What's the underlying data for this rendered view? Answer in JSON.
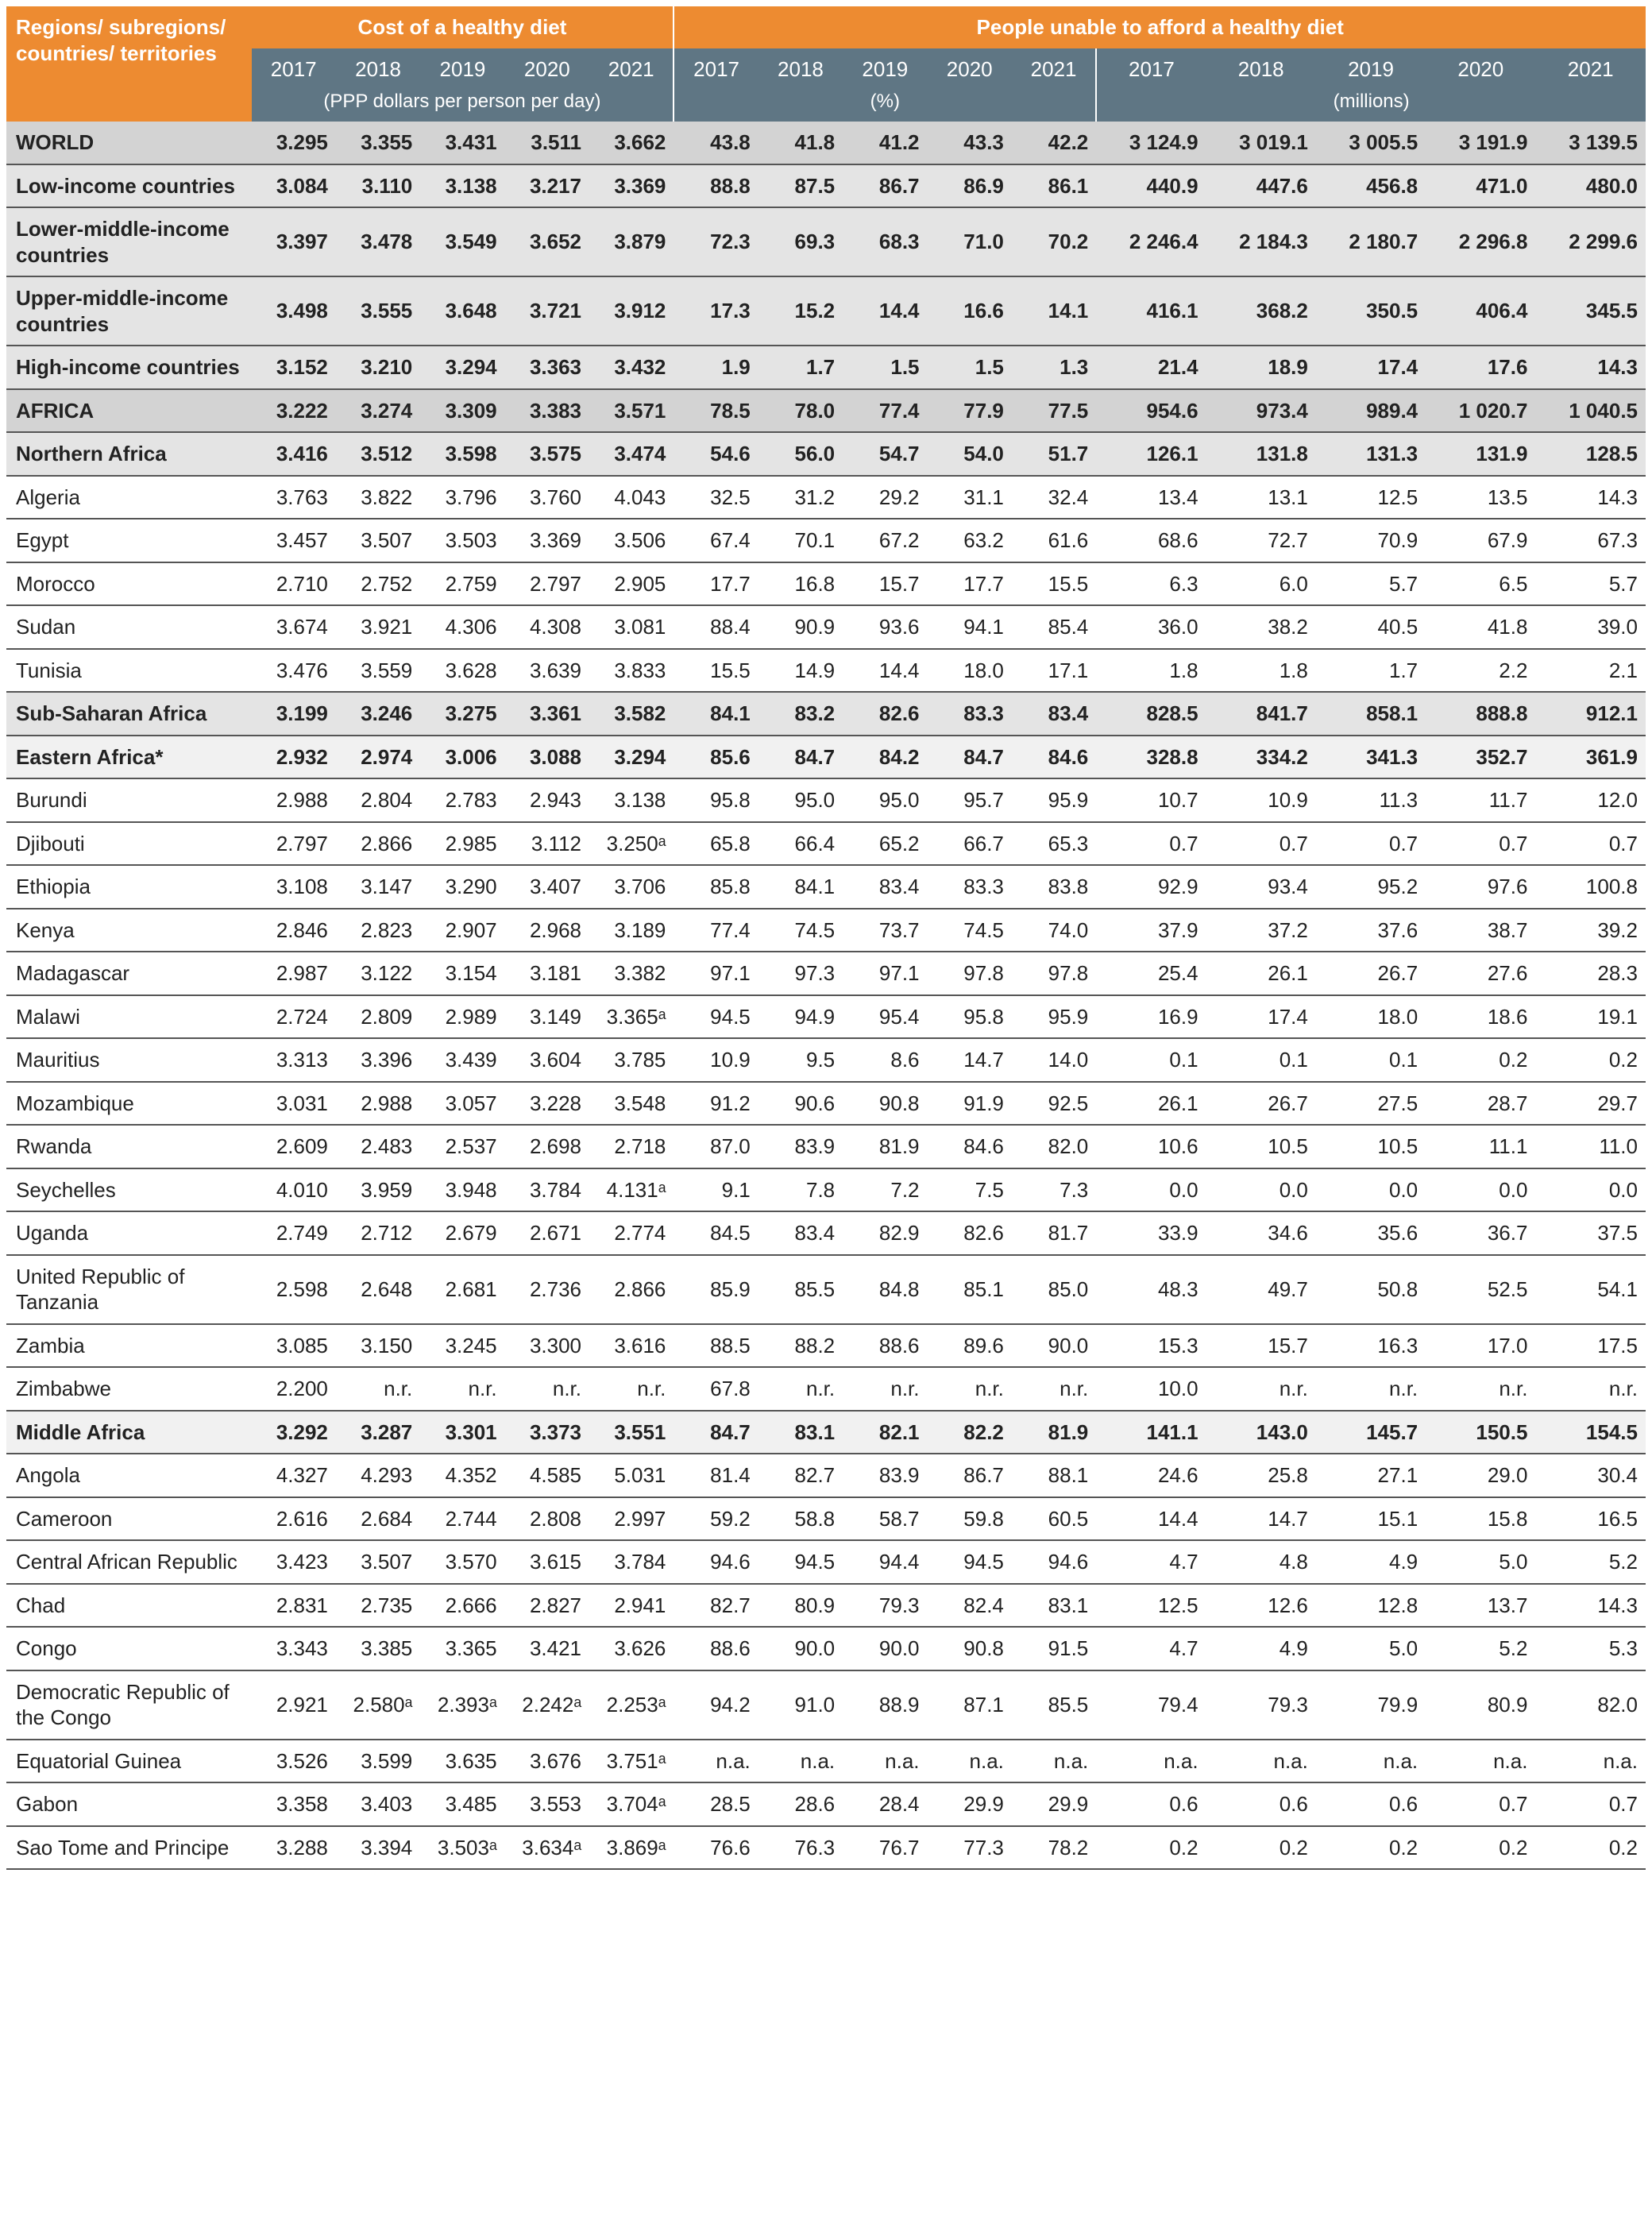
{
  "type": "table",
  "background_color": "#ffffff",
  "colors": {
    "header_orange": "#ed8b31",
    "header_slate": "#5f7684",
    "header_text": "#ffffff",
    "row_lvl0_bg": "#d3d3d3",
    "row_lvl1_bg": "#e4e4e4",
    "row_lvl2_bg": "#f1f1f1",
    "row_lvl3_bg": "#ffffff",
    "border": "#555555",
    "text": "#222222"
  },
  "typography": {
    "font_family": "Arial, Helvetica, sans-serif",
    "body_fontsize_pt": 20,
    "header_fontsize_pt": 20
  },
  "header": {
    "region_label": "Regions/ subregions/ countries/ territories",
    "group_cost": "Cost of a healthy diet",
    "group_people": "People unable to afford a healthy diet",
    "years": [
      "2017",
      "2018",
      "2019",
      "2020",
      "2021"
    ],
    "unit_cost": "(PPP dollars per person per day)",
    "unit_pct": "(%)",
    "unit_mil": "(millions)"
  },
  "rows": [
    {
      "level": 0,
      "label": "WORLD",
      "cost": [
        "3.295",
        "3.355",
        "3.431",
        "3.511",
        "3.662"
      ],
      "pct": [
        "43.8",
        "41.8",
        "41.2",
        "43.3",
        "42.2"
      ],
      "mil": [
        "3 124.9",
        "3 019.1",
        "3 005.5",
        "3 191.9",
        "3 139.5"
      ]
    },
    {
      "level": 1,
      "label": "Low-income countries",
      "cost": [
        "3.084",
        "3.110",
        "3.138",
        "3.217",
        "3.369"
      ],
      "pct": [
        "88.8",
        "87.5",
        "86.7",
        "86.9",
        "86.1"
      ],
      "mil": [
        "440.9",
        "447.6",
        "456.8",
        "471.0",
        "480.0"
      ]
    },
    {
      "level": 1,
      "label": "Lower-middle-income countries",
      "cost": [
        "3.397",
        "3.478",
        "3.549",
        "3.652",
        "3.879"
      ],
      "pct": [
        "72.3",
        "69.3",
        "68.3",
        "71.0",
        "70.2"
      ],
      "mil": [
        "2 246.4",
        "2 184.3",
        "2 180.7",
        "2 296.8",
        "2 299.6"
      ]
    },
    {
      "level": 1,
      "label": "Upper-middle-income countries",
      "cost": [
        "3.498",
        "3.555",
        "3.648",
        "3.721",
        "3.912"
      ],
      "pct": [
        "17.3",
        "15.2",
        "14.4",
        "16.6",
        "14.1"
      ],
      "mil": [
        "416.1",
        "368.2",
        "350.5",
        "406.4",
        "345.5"
      ]
    },
    {
      "level": 1,
      "label": "High-income countries",
      "cost": [
        "3.152",
        "3.210",
        "3.294",
        "3.363",
        "3.432"
      ],
      "pct": [
        "1.9",
        "1.7",
        "1.5",
        "1.5",
        "1.3"
      ],
      "mil": [
        "21.4",
        "18.9",
        "17.4",
        "17.6",
        "14.3"
      ]
    },
    {
      "level": 0,
      "label": "AFRICA",
      "cost": [
        "3.222",
        "3.274",
        "3.309",
        "3.383",
        "3.571"
      ],
      "pct": [
        "78.5",
        "78.0",
        "77.4",
        "77.9",
        "77.5"
      ],
      "mil": [
        "954.6",
        "973.4",
        "989.4",
        "1 020.7",
        "1 040.5"
      ]
    },
    {
      "level": 1,
      "label": "Northern Africa",
      "cost": [
        "3.416",
        "3.512",
        "3.598",
        "3.575",
        "3.474"
      ],
      "pct": [
        "54.6",
        "56.0",
        "54.7",
        "54.0",
        "51.7"
      ],
      "mil": [
        "126.1",
        "131.8",
        "131.3",
        "131.9",
        "128.5"
      ]
    },
    {
      "level": 3,
      "label": "Algeria",
      "cost": [
        "3.763",
        "3.822",
        "3.796",
        "3.760",
        "4.043"
      ],
      "pct": [
        "32.5",
        "31.2",
        "29.2",
        "31.1",
        "32.4"
      ],
      "mil": [
        "13.4",
        "13.1",
        "12.5",
        "13.5",
        "14.3"
      ]
    },
    {
      "level": 3,
      "label": "Egypt",
      "cost": [
        "3.457",
        "3.507",
        "3.503",
        "3.369",
        "3.506"
      ],
      "pct": [
        "67.4",
        "70.1",
        "67.2",
        "63.2",
        "61.6"
      ],
      "mil": [
        "68.6",
        "72.7",
        "70.9",
        "67.9",
        "67.3"
      ]
    },
    {
      "level": 3,
      "label": "Morocco",
      "cost": [
        "2.710",
        "2.752",
        "2.759",
        "2.797",
        "2.905"
      ],
      "pct": [
        "17.7",
        "16.8",
        "15.7",
        "17.7",
        "15.5"
      ],
      "mil": [
        "6.3",
        "6.0",
        "5.7",
        "6.5",
        "5.7"
      ]
    },
    {
      "level": 3,
      "label": "Sudan",
      "cost": [
        "3.674",
        "3.921",
        "4.306",
        "4.308",
        "3.081"
      ],
      "pct": [
        "88.4",
        "90.9",
        "93.6",
        "94.1",
        "85.4"
      ],
      "mil": [
        "36.0",
        "38.2",
        "40.5",
        "41.8",
        "39.0"
      ]
    },
    {
      "level": 3,
      "label": "Tunisia",
      "cost": [
        "3.476",
        "3.559",
        "3.628",
        "3.639",
        "3.833"
      ],
      "pct": [
        "15.5",
        "14.9",
        "14.4",
        "18.0",
        "17.1"
      ],
      "mil": [
        "1.8",
        "1.8",
        "1.7",
        "2.2",
        "2.1"
      ]
    },
    {
      "level": 1,
      "label": "Sub-Saharan Africa",
      "cost": [
        "3.199",
        "3.246",
        "3.275",
        "3.361",
        "3.582"
      ],
      "pct": [
        "84.1",
        "83.2",
        "82.6",
        "83.3",
        "83.4"
      ],
      "mil": [
        "828.5",
        "841.7",
        "858.1",
        "888.8",
        "912.1"
      ]
    },
    {
      "level": 2,
      "label": "Eastern Africa*",
      "cost": [
        "2.932",
        "2.974",
        "3.006",
        "3.088",
        "3.294"
      ],
      "pct": [
        "85.6",
        "84.7",
        "84.2",
        "84.7",
        "84.6"
      ],
      "mil": [
        "328.8",
        "334.2",
        "341.3",
        "352.7",
        "361.9"
      ]
    },
    {
      "level": 3,
      "label": "Burundi",
      "cost": [
        "2.988",
        "2.804",
        "2.783",
        "2.943",
        "3.138"
      ],
      "pct": [
        "95.8",
        "95.0",
        "95.0",
        "95.7",
        "95.9"
      ],
      "mil": [
        "10.7",
        "10.9",
        "11.3",
        "11.7",
        "12.0"
      ]
    },
    {
      "level": 3,
      "label": "Djibouti",
      "cost": [
        "2.797",
        "2.866",
        "2.985",
        "3.112",
        "3.250ᵃ"
      ],
      "pct": [
        "65.8",
        "66.4",
        "65.2",
        "66.7",
        "65.3"
      ],
      "mil": [
        "0.7",
        "0.7",
        "0.7",
        "0.7",
        "0.7"
      ]
    },
    {
      "level": 3,
      "label": "Ethiopia",
      "cost": [
        "3.108",
        "3.147",
        "3.290",
        "3.407",
        "3.706"
      ],
      "pct": [
        "85.8",
        "84.1",
        "83.4",
        "83.3",
        "83.8"
      ],
      "mil": [
        "92.9",
        "93.4",
        "95.2",
        "97.6",
        "100.8"
      ]
    },
    {
      "level": 3,
      "label": "Kenya",
      "cost": [
        "2.846",
        "2.823",
        "2.907",
        "2.968",
        "3.189"
      ],
      "pct": [
        "77.4",
        "74.5",
        "73.7",
        "74.5",
        "74.0"
      ],
      "mil": [
        "37.9",
        "37.2",
        "37.6",
        "38.7",
        "39.2"
      ]
    },
    {
      "level": 3,
      "label": "Madagascar",
      "cost": [
        "2.987",
        "3.122",
        "3.154",
        "3.181",
        "3.382"
      ],
      "pct": [
        "97.1",
        "97.3",
        "97.1",
        "97.8",
        "97.8"
      ],
      "mil": [
        "25.4",
        "26.1",
        "26.7",
        "27.6",
        "28.3"
      ]
    },
    {
      "level": 3,
      "label": "Malawi",
      "cost": [
        "2.724",
        "2.809",
        "2.989",
        "3.149",
        "3.365ᵃ"
      ],
      "pct": [
        "94.5",
        "94.9",
        "95.4",
        "95.8",
        "95.9"
      ],
      "mil": [
        "16.9",
        "17.4",
        "18.0",
        "18.6",
        "19.1"
      ]
    },
    {
      "level": 3,
      "label": "Mauritius",
      "cost": [
        "3.313",
        "3.396",
        "3.439",
        "3.604",
        "3.785"
      ],
      "pct": [
        "10.9",
        "9.5",
        "8.6",
        "14.7",
        "14.0"
      ],
      "mil": [
        "0.1",
        "0.1",
        "0.1",
        "0.2",
        "0.2"
      ]
    },
    {
      "level": 3,
      "label": "Mozambique",
      "cost": [
        "3.031",
        "2.988",
        "3.057",
        "3.228",
        "3.548"
      ],
      "pct": [
        "91.2",
        "90.6",
        "90.8",
        "91.9",
        "92.5"
      ],
      "mil": [
        "26.1",
        "26.7",
        "27.5",
        "28.7",
        "29.7"
      ]
    },
    {
      "level": 3,
      "label": "Rwanda",
      "cost": [
        "2.609",
        "2.483",
        "2.537",
        "2.698",
        "2.718"
      ],
      "pct": [
        "87.0",
        "83.9",
        "81.9",
        "84.6",
        "82.0"
      ],
      "mil": [
        "10.6",
        "10.5",
        "10.5",
        "11.1",
        "11.0"
      ]
    },
    {
      "level": 3,
      "label": "Seychelles",
      "cost": [
        "4.010",
        "3.959",
        "3.948",
        "3.784",
        "4.131ᵃ"
      ],
      "pct": [
        "9.1",
        "7.8",
        "7.2",
        "7.5",
        "7.3"
      ],
      "mil": [
        "0.0",
        "0.0",
        "0.0",
        "0.0",
        "0.0"
      ]
    },
    {
      "level": 3,
      "label": "Uganda",
      "cost": [
        "2.749",
        "2.712",
        "2.679",
        "2.671",
        "2.774"
      ],
      "pct": [
        "84.5",
        "83.4",
        "82.9",
        "82.6",
        "81.7"
      ],
      "mil": [
        "33.9",
        "34.6",
        "35.6",
        "36.7",
        "37.5"
      ]
    },
    {
      "level": 3,
      "label": "United Republic of Tanzania",
      "cost": [
        "2.598",
        "2.648",
        "2.681",
        "2.736",
        "2.866"
      ],
      "pct": [
        "85.9",
        "85.5",
        "84.8",
        "85.1",
        "85.0"
      ],
      "mil": [
        "48.3",
        "49.7",
        "50.8",
        "52.5",
        "54.1"
      ]
    },
    {
      "level": 3,
      "label": "Zambia",
      "cost": [
        "3.085",
        "3.150",
        "3.245",
        "3.300",
        "3.616"
      ],
      "pct": [
        "88.5",
        "88.2",
        "88.6",
        "89.6",
        "90.0"
      ],
      "mil": [
        "15.3",
        "15.7",
        "16.3",
        "17.0",
        "17.5"
      ]
    },
    {
      "level": 3,
      "label": "Zimbabwe",
      "cost": [
        "2.200",
        "n.r.",
        "n.r.",
        "n.r.",
        "n.r."
      ],
      "pct": [
        "67.8",
        "n.r.",
        "n.r.",
        "n.r.",
        "n.r."
      ],
      "mil": [
        "10.0",
        "n.r.",
        "n.r.",
        "n.r.",
        "n.r."
      ]
    },
    {
      "level": 2,
      "label": "Middle Africa",
      "cost": [
        "3.292",
        "3.287",
        "3.301",
        "3.373",
        "3.551"
      ],
      "pct": [
        "84.7",
        "83.1",
        "82.1",
        "82.2",
        "81.9"
      ],
      "mil": [
        "141.1",
        "143.0",
        "145.7",
        "150.5",
        "154.5"
      ]
    },
    {
      "level": 3,
      "label": "Angola",
      "cost": [
        "4.327",
        "4.293",
        "4.352",
        "4.585",
        "5.031"
      ],
      "pct": [
        "81.4",
        "82.7",
        "83.9",
        "86.7",
        "88.1"
      ],
      "mil": [
        "24.6",
        "25.8",
        "27.1",
        "29.0",
        "30.4"
      ]
    },
    {
      "level": 3,
      "label": "Cameroon",
      "cost": [
        "2.616",
        "2.684",
        "2.744",
        "2.808",
        "2.997"
      ],
      "pct": [
        "59.2",
        "58.8",
        "58.7",
        "59.8",
        "60.5"
      ],
      "mil": [
        "14.4",
        "14.7",
        "15.1",
        "15.8",
        "16.5"
      ]
    },
    {
      "level": 3,
      "label": "Central African Republic",
      "cost": [
        "3.423",
        "3.507",
        "3.570",
        "3.615",
        "3.784"
      ],
      "pct": [
        "94.6",
        "94.5",
        "94.4",
        "94.5",
        "94.6"
      ],
      "mil": [
        "4.7",
        "4.8",
        "4.9",
        "5.0",
        "5.2"
      ]
    },
    {
      "level": 3,
      "label": "Chad",
      "cost": [
        "2.831",
        "2.735",
        "2.666",
        "2.827",
        "2.941"
      ],
      "pct": [
        "82.7",
        "80.9",
        "79.3",
        "82.4",
        "83.1"
      ],
      "mil": [
        "12.5",
        "12.6",
        "12.8",
        "13.7",
        "14.3"
      ]
    },
    {
      "level": 3,
      "label": "Congo",
      "cost": [
        "3.343",
        "3.385",
        "3.365",
        "3.421",
        "3.626"
      ],
      "pct": [
        "88.6",
        "90.0",
        "90.0",
        "90.8",
        "91.5"
      ],
      "mil": [
        "4.7",
        "4.9",
        "5.0",
        "5.2",
        "5.3"
      ]
    },
    {
      "level": 3,
      "label": "Democratic Republic of the Congo",
      "cost": [
        "2.921",
        "2.580ᵃ",
        "2.393ᵃ",
        "2.242ᵃ",
        "2.253ᵃ"
      ],
      "pct": [
        "94.2",
        "91.0",
        "88.9",
        "87.1",
        "85.5"
      ],
      "mil": [
        "79.4",
        "79.3",
        "79.9",
        "80.9",
        "82.0"
      ]
    },
    {
      "level": 3,
      "label": "Equatorial Guinea",
      "cost": [
        "3.526",
        "3.599",
        "3.635",
        "3.676",
        "3.751ᵃ"
      ],
      "pct": [
        "n.a.",
        "n.a.",
        "n.a.",
        "n.a.",
        "n.a."
      ],
      "mil": [
        "n.a.",
        "n.a.",
        "n.a.",
        "n.a.",
        "n.a."
      ]
    },
    {
      "level": 3,
      "label": "Gabon",
      "cost": [
        "3.358",
        "3.403",
        "3.485",
        "3.553",
        "3.704ᵃ"
      ],
      "pct": [
        "28.5",
        "28.6",
        "28.4",
        "29.9",
        "29.9"
      ],
      "mil": [
        "0.6",
        "0.6",
        "0.6",
        "0.7",
        "0.7"
      ]
    },
    {
      "level": 3,
      "label": "Sao Tome and Principe",
      "cost": [
        "3.288",
        "3.394",
        "3.503ᵃ",
        "3.634ᵃ",
        "3.869ᵃ"
      ],
      "pct": [
        "76.6",
        "76.3",
        "76.7",
        "77.3",
        "78.2"
      ],
      "mil": [
        "0.2",
        "0.2",
        "0.2",
        "0.2",
        "0.2"
      ]
    }
  ]
}
